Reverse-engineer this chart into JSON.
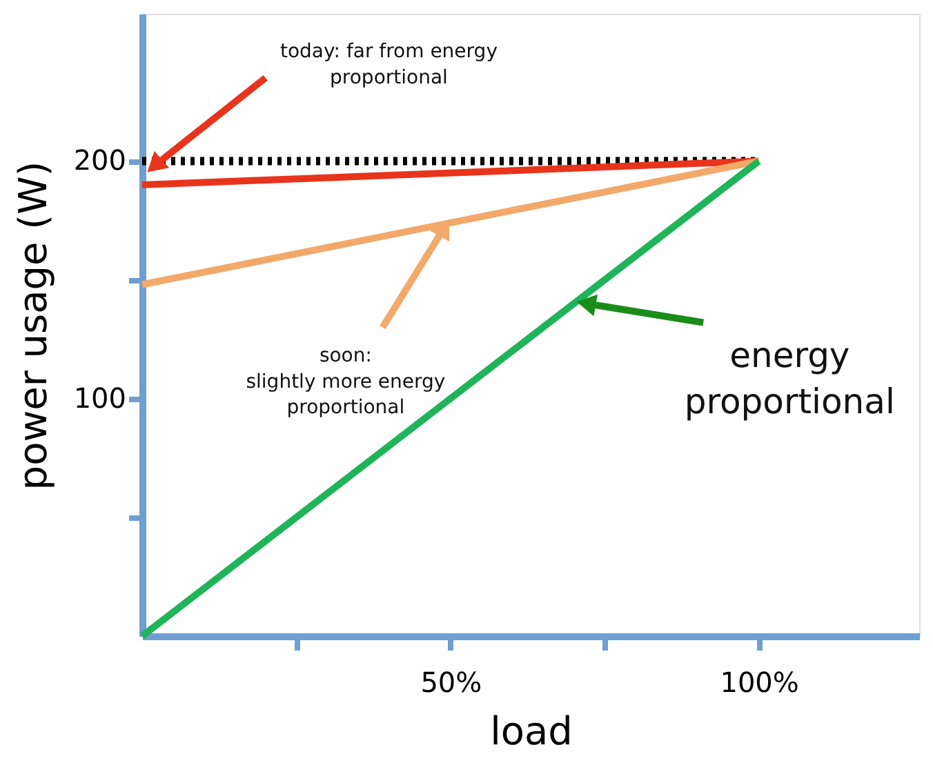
{
  "chart_data": {
    "type": "line",
    "xlabel": "load",
    "ylabel": "power usage (W)",
    "xlim": [
      0,
      126
    ],
    "xticks": [
      {
        "value": 25,
        "label": null
      },
      {
        "value": 50,
        "label": "50%"
      },
      {
        "value": 75,
        "label": null
      },
      {
        "value": 100,
        "label": "100%"
      }
    ],
    "ylim": [
      0,
      262
    ],
    "yticks": [
      {
        "value": 50,
        "label": null
      },
      100,
      {
        "value": 150,
        "label": null
      },
      200
    ],
    "grid": false,
    "x": [
      0,
      100
    ],
    "series": [
      {
        "color": "#000000",
        "line_style": "dotted",
        "values": [
          200,
          200
        ]
      },
      {
        "color": "#e8341c",
        "line_style": "solid",
        "values": [
          190,
          200
        ]
      },
      {
        "color": "#f2a96a",
        "line_style": "solid",
        "values": [
          148,
          200
        ]
      },
      {
        "color": "#1fb45a",
        "line_style": "solid",
        "values": [
          0,
          200
        ]
      }
    ],
    "annotations": [
      {
        "text": "today: far from energy\nproportional",
        "x": 2,
        "y": 198
      },
      {
        "text": "soon:\nslightly more energy\nproportional",
        "x": 49,
        "y": 172
      },
      {
        "text": "energy\nproportional",
        "x": 72,
        "y": 140
      }
    ]
  }
}
